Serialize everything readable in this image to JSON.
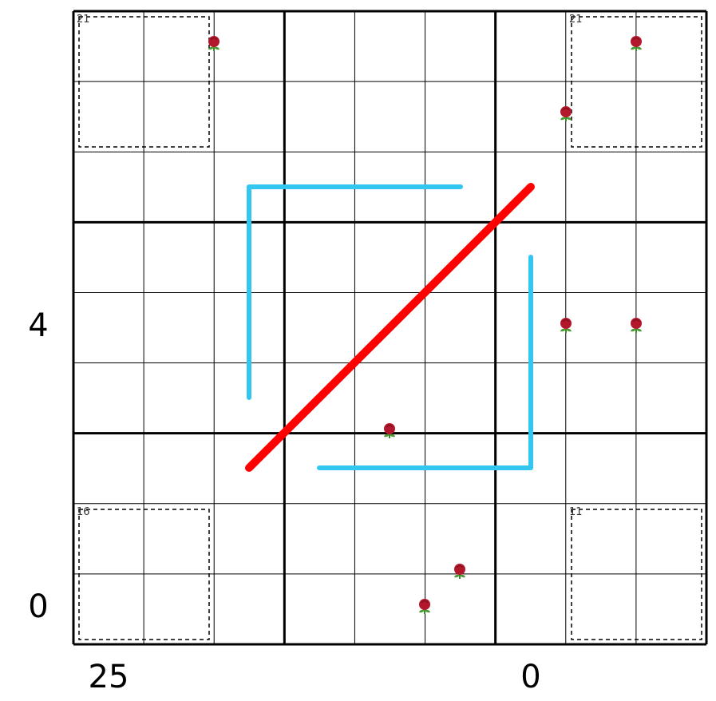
{
  "clues": {
    "left": [
      4,
      0
    ],
    "bottom": [
      25,
      0
    ]
  },
  "cages": [
    {
      "sum": 21
    },
    {
      "sum": 21
    },
    {
      "sum": 16
    },
    {
      "sum": 11
    }
  ]
}
